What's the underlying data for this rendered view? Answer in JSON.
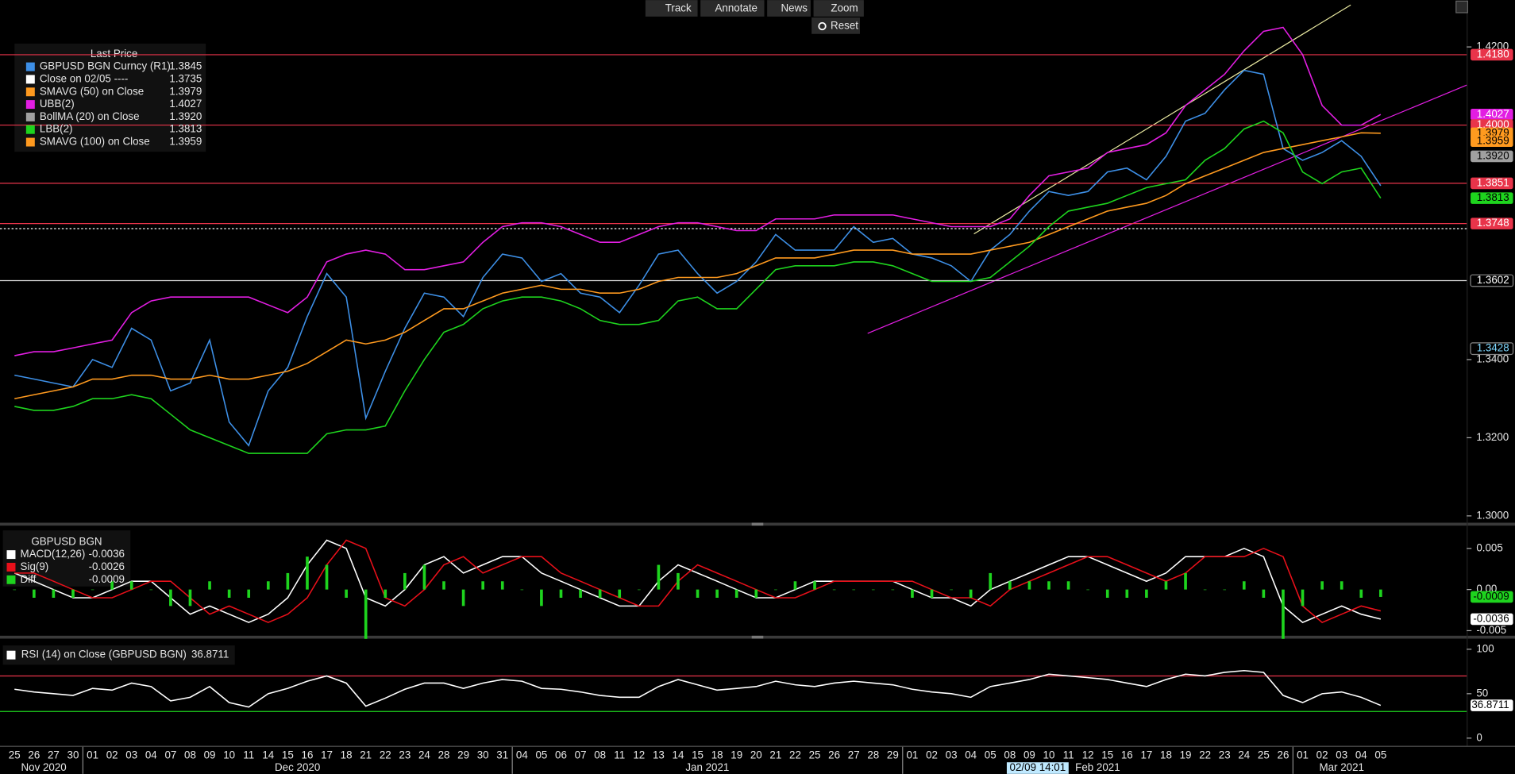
{
  "toolbar": {
    "buttons": [
      "Track",
      "Annotate",
      "News",
      "Zoom"
    ],
    "reset": "Reset"
  },
  "cursor_label": "02/09 14:01",
  "x_axis": {
    "months": [
      {
        "label": "Nov 2020",
        "days": [
          "25",
          "26",
          "27",
          "30"
        ]
      },
      {
        "label": "Dec 2020",
        "days": [
          "01",
          "02",
          "03",
          "04",
          "07",
          "08",
          "09",
          "10",
          "11",
          "14",
          "15",
          "16",
          "17",
          "18",
          "21",
          "22",
          "23",
          "24",
          "28",
          "29",
          "30",
          "31"
        ]
      },
      {
        "label": "Jan 2021",
        "days": [
          "04",
          "05",
          "06",
          "07",
          "08",
          "11",
          "12",
          "13",
          "14",
          "15",
          "18",
          "19",
          "20",
          "21",
          "22",
          "25",
          "26",
          "27",
          "28",
          "29"
        ]
      },
      {
        "label": "Feb 2021",
        "days": [
          "01",
          "02",
          "03",
          "04",
          "05",
          "08",
          "09",
          "10",
          "11",
          "12",
          "15",
          "16",
          "17",
          "18",
          "19",
          "22",
          "23",
          "24",
          "25",
          "26"
        ]
      },
      {
        "label": "Mar 2021",
        "days": [
          "01",
          "02",
          "03",
          "04",
          "05"
        ]
      }
    ]
  },
  "chart_data": [
    {
      "type": "line",
      "title": "Last Price",
      "ylim": [
        1.2985,
        1.4295
      ],
      "yticks": [
        {
          "value": 1.3,
          "label": "1.3000"
        },
        {
          "value": 1.32,
          "label": "1.3200"
        },
        {
          "value": 1.34,
          "label": "1.3400"
        },
        {
          "value": 1.42,
          "label": "1.4200"
        }
      ],
      "series": [
        {
          "name": "GBPUSD BGN Curncy  (R1)",
          "color": "#3d8fe6",
          "last_label": "1.3845",
          "values": [
            1.336,
            1.335,
            1.334,
            1.333,
            1.34,
            1.338,
            1.348,
            1.345,
            1.332,
            1.334,
            1.345,
            1.324,
            1.318,
            1.332,
            1.338,
            1.351,
            1.362,
            1.356,
            1.325,
            1.337,
            1.348,
            1.357,
            1.356,
            1.351,
            1.361,
            1.367,
            1.366,
            1.36,
            1.362,
            1.357,
            1.356,
            1.352,
            1.359,
            1.367,
            1.368,
            1.362,
            1.357,
            1.36,
            1.365,
            1.372,
            1.368,
            1.368,
            1.368,
            1.374,
            1.37,
            1.371,
            1.367,
            1.366,
            1.364,
            1.36,
            1.368,
            1.372,
            1.378,
            1.383,
            1.382,
            1.383,
            1.388,
            1.389,
            1.386,
            1.392,
            1.401,
            1.403,
            1.409,
            1.414,
            1.413,
            1.394,
            1.391,
            1.393,
            1.396,
            1.392,
            1.3845
          ]
        },
        {
          "name": "Close on 02/05 ----",
          "color": "#ffffff",
          "last_label": "1.3735",
          "level": 1.3735
        },
        {
          "name": "SMAVG (50)  on Close",
          "color": "#ff9a1f",
          "last_label": "1.3979",
          "values": [
            1.33,
            1.331,
            1.332,
            1.333,
            1.335,
            1.335,
            1.336,
            1.336,
            1.335,
            1.335,
            1.336,
            1.335,
            1.335,
            1.336,
            1.337,
            1.339,
            1.342,
            1.345,
            1.344,
            1.345,
            1.347,
            1.35,
            1.353,
            1.353,
            1.355,
            1.357,
            1.358,
            1.359,
            1.358,
            1.358,
            1.357,
            1.357,
            1.358,
            1.36,
            1.361,
            1.361,
            1.361,
            1.362,
            1.364,
            1.366,
            1.366,
            1.366,
            1.367,
            1.368,
            1.368,
            1.368,
            1.367,
            1.367,
            1.367,
            1.367,
            1.368,
            1.369,
            1.37,
            1.372,
            1.374,
            1.376,
            1.378,
            1.379,
            1.38,
            1.382,
            1.385,
            1.387,
            1.389,
            1.391,
            1.393,
            1.394,
            1.395,
            1.396,
            1.397,
            1.398,
            1.3979
          ]
        },
        {
          "name": "UBB(2)",
          "color": "#e21ee2",
          "last_label": "1.4027",
          "values": [
            1.341,
            1.342,
            1.342,
            1.343,
            1.344,
            1.345,
            1.352,
            1.355,
            1.356,
            1.356,
            1.356,
            1.356,
            1.356,
            1.354,
            1.352,
            1.356,
            1.365,
            1.367,
            1.368,
            1.367,
            1.363,
            1.363,
            1.364,
            1.365,
            1.37,
            1.374,
            1.375,
            1.375,
            1.374,
            1.372,
            1.37,
            1.37,
            1.372,
            1.374,
            1.375,
            1.375,
            1.374,
            1.373,
            1.373,
            1.376,
            1.376,
            1.376,
            1.377,
            1.377,
            1.377,
            1.377,
            1.376,
            1.375,
            1.374,
            1.374,
            1.374,
            1.376,
            1.382,
            1.387,
            1.388,
            1.389,
            1.393,
            1.394,
            1.395,
            1.398,
            1.405,
            1.409,
            1.413,
            1.419,
            1.424,
            1.425,
            1.418,
            1.405,
            1.4,
            1.4,
            1.4027
          ]
        },
        {
          "name": "BollMA (20)  on Close",
          "color": "#a0a0a0",
          "last_label": "1.3920"
        },
        {
          "name": "LBB(2)",
          "color": "#1ed41e",
          "last_label": "1.3813",
          "values": [
            1.328,
            1.327,
            1.327,
            1.328,
            1.33,
            1.33,
            1.331,
            1.33,
            1.326,
            1.322,
            1.32,
            1.318,
            1.316,
            1.316,
            1.316,
            1.316,
            1.321,
            1.322,
            1.322,
            1.323,
            1.332,
            1.34,
            1.347,
            1.349,
            1.353,
            1.355,
            1.356,
            1.356,
            1.355,
            1.353,
            1.35,
            1.349,
            1.349,
            1.35,
            1.355,
            1.356,
            1.353,
            1.353,
            1.358,
            1.363,
            1.364,
            1.364,
            1.364,
            1.365,
            1.365,
            1.364,
            1.362,
            1.36,
            1.36,
            1.36,
            1.361,
            1.365,
            1.369,
            1.374,
            1.378,
            1.379,
            1.38,
            1.382,
            1.384,
            1.385,
            1.386,
            1.391,
            1.394,
            1.399,
            1.401,
            1.398,
            1.388,
            1.385,
            1.388,
            1.389,
            1.3813
          ]
        },
        {
          "name": "SMAVG (100)  on Close",
          "color": "#ff9a1f",
          "last_label": "1.3959"
        }
      ],
      "badges": [
        {
          "value": 1.418,
          "label": "1.4180",
          "color": "#e8344a",
          "text_color": "#ffffff",
          "line": true
        },
        {
          "value": 1.4027,
          "label": "1.4027",
          "color": "#e21ee2",
          "text_color": "#ffffff",
          "line": false
        },
        {
          "value": 1.4,
          "label": "1.4000",
          "color": "#e8344a",
          "text_color": "#ffffff",
          "line": true
        },
        {
          "value": 1.3979,
          "label": "1.3979",
          "color": "#ff9a1f",
          "text_color": "#000000",
          "line": false
        },
        {
          "value": 1.3959,
          "label": "1.3959",
          "color": "#ff9a1f",
          "text_color": "#000000",
          "line": false
        },
        {
          "value": 1.392,
          "label": "1.3920",
          "color": "#a0a0a0",
          "text_color": "#000000",
          "line": false
        },
        {
          "value": 1.3851,
          "label": "1.3851",
          "color": "#e8344a",
          "text_color": "#ffffff",
          "line": true
        },
        {
          "value": 1.3813,
          "label": "1.3813",
          "color": "#1ed41e",
          "text_color": "#000000",
          "line": false
        },
        {
          "value": 1.3748,
          "label": "1.3748",
          "color": "#e8344a",
          "text_color": "#ffffff",
          "line": true
        },
        {
          "value": 1.3602,
          "label": "1.3602",
          "color": "#000000",
          "text_color": "#ffffff",
          "line": true
        },
        {
          "value": 1.3428,
          "label": "1.3428",
          "color": "#000000",
          "text_color": "#7fd8ff",
          "line": false
        }
      ]
    },
    {
      "type": "line",
      "title": "GBPUSD BGN",
      "ylim": [
        -0.0055,
        0.0073
      ],
      "yticks": [
        0.005,
        {
          "value": 0,
          "label": "0.00"
        },
        -0.005
      ],
      "series": [
        {
          "name": "MACD(12,26)",
          "color": "#ffffff",
          "last_label": "-0.0036",
          "values": [
            0.002,
            0.001,
            0,
            -0.001,
            -0.001,
            0,
            0.001,
            0.001,
            -0.001,
            -0.003,
            -0.002,
            -0.003,
            -0.004,
            -0.003,
            -0.001,
            0.003,
            0.006,
            0.005,
            -0.001,
            -0.002,
            0,
            0.003,
            0.004,
            0.002,
            0.003,
            0.004,
            0.004,
            0.002,
            0.001,
            0,
            -0.001,
            -0.002,
            -0.002,
            0.001,
            0.003,
            0.002,
            0.001,
            0,
            -0.001,
            -0.001,
            0,
            0.001,
            0.001,
            0.001,
            0.001,
            0.001,
            0,
            -0.001,
            -0.001,
            -0.002,
            0,
            0.001,
            0.002,
            0.003,
            0.004,
            0.004,
            0.003,
            0.002,
            0.001,
            0.002,
            0.004,
            0.004,
            0.004,
            0.005,
            0.004,
            -0.002,
            -0.004,
            -0.003,
            -0.002,
            -0.003,
            -0.0036
          ]
        },
        {
          "name": "Sig(9)",
          "color": "#e8101a",
          "last_label": "-0.0026",
          "values": [
            0.002,
            0.002,
            0.001,
            0,
            -0.001,
            -0.001,
            0,
            0.001,
            0.001,
            -0.001,
            -0.003,
            -0.002,
            -0.003,
            -0.004,
            -0.003,
            -0.001,
            0.003,
            0.006,
            0.005,
            -0.001,
            -0.002,
            0,
            0.003,
            0.004,
            0.002,
            0.003,
            0.004,
            0.004,
            0.002,
            0.001,
            0,
            -0.001,
            -0.002,
            -0.002,
            0.001,
            0.003,
            0.002,
            0.001,
            0,
            -0.001,
            -0.001,
            0,
            0.001,
            0.001,
            0.001,
            0.001,
            0.001,
            0,
            -0.001,
            -0.001,
            -0.002,
            0,
            0.001,
            0.002,
            0.003,
            0.004,
            0.004,
            0.003,
            0.002,
            0.001,
            0.002,
            0.004,
            0.004,
            0.004,
            0.005,
            0.004,
            -0.002,
            -0.004,
            -0.003,
            -0.002,
            -0.0026
          ]
        },
        {
          "name": "Diff",
          "color": "#1ed41e",
          "last_label": "-0.0009",
          "style": "bar",
          "values": [
            0,
            -0.001,
            -0.001,
            -0.001,
            0,
            0.001,
            0.001,
            0,
            -0.002,
            -0.002,
            0.001,
            -0.001,
            -0.001,
            0.001,
            0.002,
            0.004,
            0.003,
            -0.001,
            -0.006,
            -0.001,
            0.002,
            0.003,
            0.001,
            -0.002,
            0.001,
            0.001,
            0,
            -0.002,
            -0.001,
            -0.001,
            -0.001,
            -0.001,
            0,
            0.003,
            0.002,
            -0.001,
            -0.001,
            -0.001,
            -0.001,
            0,
            0.001,
            0.001,
            0,
            0,
            0,
            0,
            -0.001,
            -0.001,
            0,
            -0.001,
            0.002,
            0.001,
            0.001,
            0.001,
            0.001,
            0,
            -0.001,
            -0.001,
            -0.001,
            0.001,
            0.002,
            0,
            0,
            0.001,
            -0.001,
            -0.006,
            -0.002,
            0.001,
            0.001,
            -0.001,
            -0.0009
          ]
        }
      ],
      "badges": [
        {
          "value": -0.0009,
          "label": "-0.0009",
          "color": "#1ed41e",
          "text_color": "#000000",
          "line": false
        },
        {
          "value": -0.0036,
          "label": "-0.0036",
          "color": "#ffffff",
          "text_color": "#000000",
          "line": false
        }
      ]
    },
    {
      "type": "line",
      "ylim": [
        -8.7,
        108.7
      ],
      "yticks": [
        0,
        50,
        100
      ],
      "levels": [
        {
          "value": 70,
          "color": "#e8344a"
        },
        {
          "value": 30,
          "color": "#1ed41e"
        }
      ],
      "series": [
        {
          "name": "RSI (14)  on Close (GBPUSD BGN)",
          "color": "#ffffff",
          "last_label": "36.8711",
          "values": [
            55,
            52,
            50,
            48,
            56,
            54,
            62,
            58,
            42,
            46,
            58,
            40,
            35,
            50,
            56,
            64,
            70,
            62,
            36,
            45,
            55,
            62,
            62,
            56,
            62,
            66,
            64,
            56,
            55,
            52,
            48,
            46,
            46,
            58,
            66,
            60,
            54,
            56,
            58,
            64,
            60,
            58,
            62,
            64,
            62,
            60,
            55,
            52,
            50,
            46,
            58,
            62,
            66,
            72,
            70,
            68,
            66,
            62,
            58,
            66,
            72,
            70,
            74,
            76,
            74,
            48,
            40,
            50,
            52,
            46,
            36.8711
          ]
        }
      ],
      "badges": [
        {
          "value": 36.8711,
          "label": "36.8711",
          "color": "#ffffff",
          "text_color": "#000000",
          "line": false
        }
      ]
    }
  ]
}
